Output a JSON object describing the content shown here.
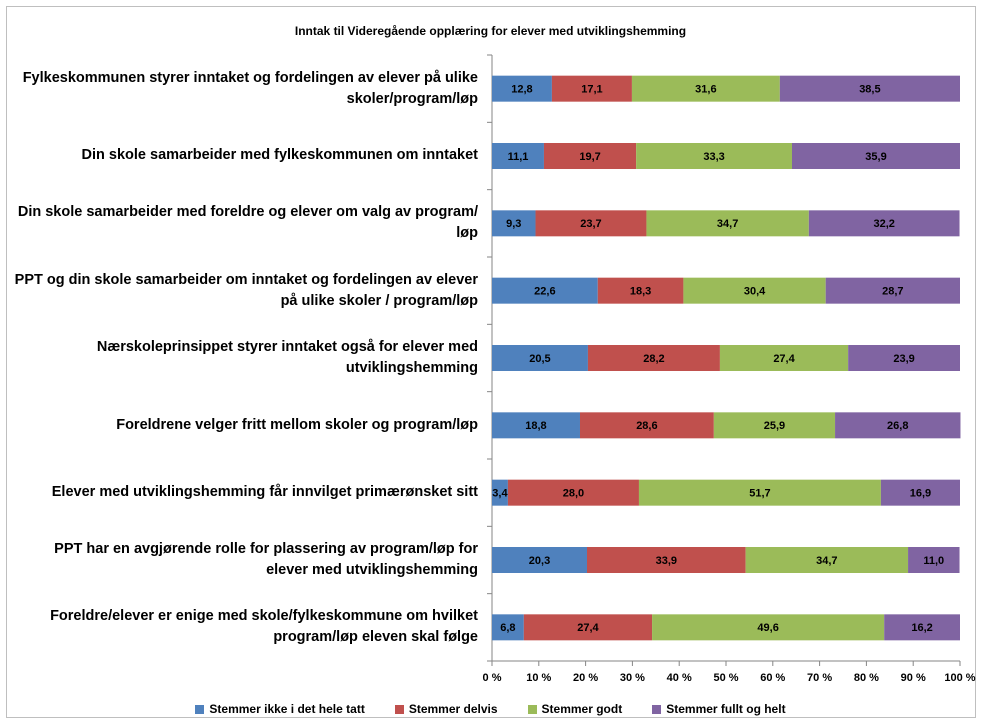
{
  "chart_data": {
    "type": "stacked-barh",
    "title": "Inntak til Videregående opplæring for elever med utviklingshemming",
    "categories": [
      "Fylkeskommunen styrer inntaket og fordelingen av elever på ulike skoler/program/løp",
      "Din skole samarbeider med fylkeskommunen om inntaket",
      "Din skole samarbeider med foreldre og elever om valg av program/ løp",
      "PPT og din skole samarbeider om inntaket og fordelingen av elever på ulike skoler / program/løp",
      "Nærskoleprinsippet styrer inntaket også for elever med utviklingshemming",
      "Foreldrene velger fritt mellom skoler og program/løp",
      "Elever med utviklingshemming får innvilget primærønsket sitt",
      "PPT har en avgjørende rolle for plassering av program/løp for elever med utviklingshemming",
      "Foreldre/elever er enige med skole/fylkeskommune om hvilket program/løp eleven skal følge"
    ],
    "series": [
      {
        "name": "Stemmer ikke i det hele tatt",
        "color": "#4f81bd",
        "values": [
          12.8,
          11.1,
          9.3,
          22.6,
          20.5,
          18.8,
          3.4,
          20.3,
          6.8
        ],
        "value_labels": [
          "12,8",
          "11,1",
          "9,3",
          "22,6",
          "20,5",
          "18,8",
          "3,4",
          "20,3",
          "6,8"
        ]
      },
      {
        "name": "Stemmer delvis",
        "color": "#c0504d",
        "values": [
          17.1,
          19.7,
          23.7,
          18.3,
          28.2,
          28.6,
          28.0,
          33.9,
          27.4
        ],
        "value_labels": [
          "17,1",
          "19,7",
          "23,7",
          "18,3",
          "28,2",
          "28,6",
          "28,0",
          "33,9",
          "27,4"
        ]
      },
      {
        "name": "Stemmer godt",
        "color": "#9bbb59",
        "values": [
          31.6,
          33.3,
          34.7,
          30.4,
          27.4,
          25.9,
          51.7,
          34.7,
          49.6
        ],
        "value_labels": [
          "31,6",
          "33,3",
          "34,7",
          "30,4",
          "27,4",
          "25,9",
          "51,7",
          "34,7",
          "49,6"
        ]
      },
      {
        "name": "Stemmer fullt og helt",
        "color": "#8064a2",
        "values": [
          38.5,
          35.9,
          32.2,
          28.7,
          23.9,
          26.8,
          16.9,
          11.0,
          16.2
        ],
        "value_labels": [
          "38,5",
          "35,9",
          "32,2",
          "28,7",
          "23,9",
          "26,8",
          "16,9",
          "11,0",
          "16,2"
        ]
      }
    ],
    "xlim": [
      0,
      100
    ],
    "xticks": [
      {
        "value": 0,
        "label": "0 %"
      },
      {
        "value": 10,
        "label": "10 %"
      },
      {
        "value": 20,
        "label": "20 %"
      },
      {
        "value": 30,
        "label": "30 %"
      },
      {
        "value": 40,
        "label": "40 %"
      },
      {
        "value": 50,
        "label": "50 %"
      },
      {
        "value": 60,
        "label": "60 %"
      },
      {
        "value": 70,
        "label": "70 %"
      },
      {
        "value": 80,
        "label": "80 %"
      },
      {
        "value": 90,
        "label": "90 %"
      },
      {
        "value": 100,
        "label": "100 %"
      }
    ],
    "legend": "bottom"
  }
}
